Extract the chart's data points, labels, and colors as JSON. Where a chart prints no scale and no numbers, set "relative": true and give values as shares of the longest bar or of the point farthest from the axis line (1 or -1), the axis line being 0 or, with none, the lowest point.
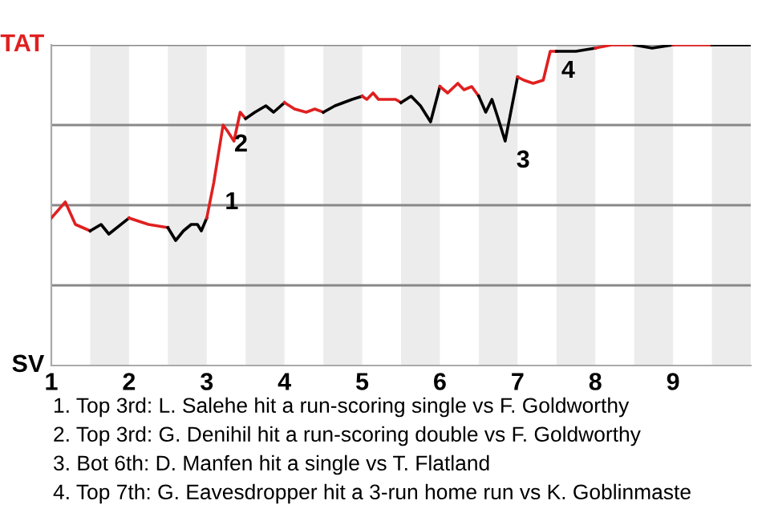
{
  "chart_data": {
    "type": "line",
    "relative": true,
    "xlim": [
      1,
      10
    ],
    "xticks": [
      1,
      2,
      3,
      4,
      5,
      6,
      7,
      8,
      9
    ],
    "grid": "y",
    "legend": false,
    "marker": "none",
    "line_style": "solid",
    "bands": [
      {
        "axis": "x",
        "from": 1.5,
        "to": 2,
        "color": "#ececec"
      },
      {
        "axis": "x",
        "from": 2.5,
        "to": 3,
        "color": "#ececec"
      },
      {
        "axis": "x",
        "from": 3.5,
        "to": 4,
        "color": "#ececec"
      },
      {
        "axis": "x",
        "from": 4.5,
        "to": 5,
        "color": "#ececec"
      },
      {
        "axis": "x",
        "from": 5.5,
        "to": 6,
        "color": "#ececec"
      },
      {
        "axis": "x",
        "from": 6.5,
        "to": 7,
        "color": "#ececec"
      },
      {
        "axis": "x",
        "from": 7.5,
        "to": 8,
        "color": "#ececec"
      },
      {
        "axis": "x",
        "from": 8.5,
        "to": 9,
        "color": "#ececec"
      },
      {
        "axis": "x",
        "from": 9.5,
        "to": 10,
        "color": "#ececec"
      }
    ],
    "series": [
      {
        "name": "TAT",
        "color": "#e02020",
        "x": [
          1,
          1.18,
          1.31,
          1.5
        ],
        "values": [
          0.46,
          0.51,
          0.44,
          0.42
        ]
      },
      {
        "name": "SV",
        "color": "#000000",
        "x": [
          1.5,
          1.64,
          1.74,
          2
        ],
        "values": [
          0.42,
          0.44,
          0.41,
          0.46
        ]
      },
      {
        "color": "#e02020",
        "x": [
          2,
          2.25,
          2.5
        ],
        "values": [
          0.46,
          0.44,
          0.43
        ]
      },
      {
        "color": "#000000",
        "x": [
          2.5,
          2.6,
          2.7,
          2.8,
          2.88,
          2.93,
          3
        ],
        "values": [
          0.43,
          0.39,
          0.42,
          0.44,
          0.44,
          0.42,
          0.46
        ]
      },
      {
        "color": "#e02020",
        "x": [
          3,
          3.09,
          3.15,
          3.21,
          3.27,
          3.35,
          3.43,
          3.5
        ],
        "values": [
          0.46,
          0.57,
          0.66,
          0.75,
          0.73,
          0.7,
          0.79,
          0.77
        ]
      },
      {
        "color": "#000000",
        "x": [
          3.5,
          3.62,
          3.76,
          3.86,
          4
        ],
        "values": [
          0.77,
          0.79,
          0.81,
          0.79,
          0.82
        ]
      },
      {
        "color": "#e02020",
        "x": [
          4,
          4.13,
          4.28,
          4.39,
          4.5
        ],
        "values": [
          0.82,
          0.8,
          0.79,
          0.8,
          0.79
        ]
      },
      {
        "color": "#000000",
        "x": [
          4.5,
          4.65,
          4.87,
          5
        ],
        "values": [
          0.79,
          0.81,
          0.83,
          0.84
        ]
      },
      {
        "color": "#e02020",
        "x": [
          5,
          5.06,
          5.14,
          5.21,
          5.43,
          5.5
        ],
        "values": [
          0.84,
          0.83,
          0.85,
          0.83,
          0.83,
          0.82
        ]
      },
      {
        "color": "#000000",
        "x": [
          5.5,
          5.63,
          5.75,
          5.88,
          6
        ],
        "values": [
          0.82,
          0.84,
          0.81,
          0.76,
          0.87
        ]
      },
      {
        "color": "#e02020",
        "x": [
          6,
          6.1,
          6.23,
          6.31,
          6.41,
          6.5
        ],
        "values": [
          0.87,
          0.85,
          0.88,
          0.86,
          0.87,
          0.84
        ]
      },
      {
        "color": "#000000",
        "x": [
          6.5,
          6.59,
          6.67,
          6.75,
          6.84,
          7
        ],
        "values": [
          0.84,
          0.79,
          0.83,
          0.77,
          0.7,
          0.9
        ]
      },
      {
        "color": "#e02020",
        "x": [
          7,
          7.08,
          7.2,
          7.33,
          7.42,
          7.5
        ],
        "values": [
          0.9,
          0.89,
          0.88,
          0.89,
          0.98,
          0.98
        ]
      },
      {
        "color": "#000000",
        "x": [
          7.5,
          7.75,
          8
        ],
        "values": [
          0.98,
          0.98,
          0.99
        ]
      },
      {
        "color": "#e02020",
        "x": [
          8,
          8.21,
          8.5
        ],
        "values": [
          0.99,
          1.0,
          1.0
        ]
      },
      {
        "color": "#000000",
        "x": [
          8.5,
          8.73,
          9
        ],
        "values": [
          1.0,
          0.99,
          1.0
        ]
      },
      {
        "color": "#e02020",
        "x": [
          9,
          9.5
        ],
        "values": [
          1.0,
          1.0
        ]
      },
      {
        "color": "#000000",
        "x": [
          9.5,
          9.75,
          10
        ],
        "values": [
          1.0,
          1.0,
          1.0
        ]
      }
    ],
    "annotations": [
      {
        "text": "1",
        "x": 3.09,
        "y": 0.57
      },
      {
        "text": "2",
        "x": 3.21,
        "y": 0.75
      },
      {
        "text": "3",
        "x": 6.84,
        "y": 0.7
      },
      {
        "text": "4",
        "x": 7.42,
        "y": 0.98
      },
      "1. Top 3rd: L. Salehe hit a run-scoring single vs F. Goldworthy",
      "2. Top 3rd: G. Denihil hit a run-scoring double vs F. Goldworthy",
      "3. Bot 6th: D. Manfen hit a single vs T. Flatland",
      "4. Top 7th: G. Eavesdropper hit a 3-run home run vs K. Goblinmaste"
    ]
  }
}
